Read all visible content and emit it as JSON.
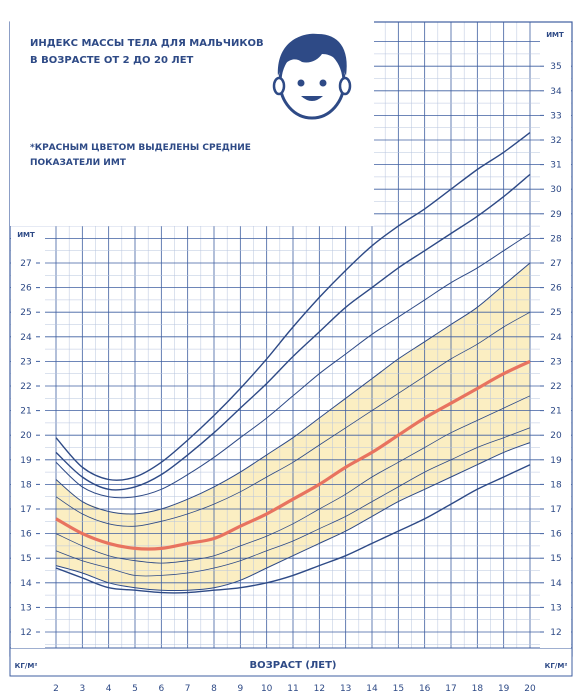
{
  "header": {
    "title_line1": "ИНДЕКС МАССЫ ТЕЛА ДЛЯ МАЛЬЧИКОВ",
    "title_line2": "В ВОЗРАСТЕ ОТ 2 ДО 20 ЛЕТ",
    "note_line1": "*КРАСНЫМ ЦВЕТОМ ВЫДЕЛЕНЫ СРЕДНИЕ",
    "note_line2": "ПОКАЗАТЕЛИ ИМТ"
  },
  "colors": {
    "grid": "#3f5fa0",
    "grid_light": "#b7c4de",
    "curve": "#2e4a86",
    "median": "#e8735f",
    "band_fill": "#fbeec2",
    "text": "#2e4a86"
  },
  "icons": {
    "boy": "boy-face-icon"
  },
  "chart_data": {
    "type": "line",
    "title": "ИНДЕКС МАССЫ ТЕЛА ДЛЯ МАЛЬЧИКОВ В ВОЗРАСТЕ ОТ 2 ДО 20 ЛЕТ",
    "xlabel": "ВОЗРАСТ (ЛЕТ)",
    "ylabel_left_top": "ИМТ",
    "ylabel_right_top": "ИМТ",
    "unit_left": "КГ/М²",
    "unit_right": "КГ/М²",
    "xlim": [
      2,
      20
    ],
    "ylim": [
      11,
      36
    ],
    "x_ticks": [
      2,
      3,
      4,
      5,
      6,
      7,
      8,
      9,
      10,
      11,
      12,
      13,
      14,
      15,
      16,
      17,
      18,
      19,
      20
    ],
    "y_ticks_left": [
      12,
      13,
      14,
      15,
      16,
      17,
      18,
      19,
      20,
      21,
      22,
      23,
      24,
      25,
      26,
      27
    ],
    "y_ticks_right": [
      12,
      13,
      14,
      15,
      16,
      17,
      18,
      19,
      20,
      21,
      22,
      23,
      24,
      25,
      26,
      27,
      28,
      29,
      30,
      31,
      32,
      33,
      34,
      35
    ],
    "grid": true,
    "legend": "none",
    "highlight_band": [
      "p5",
      "p85"
    ],
    "x": [
      2,
      3,
      4,
      5,
      6,
      7,
      8,
      9,
      10,
      11,
      12,
      13,
      14,
      15,
      16,
      17,
      18,
      19,
      20
    ],
    "series": [
      {
        "id": "p97",
        "values": [
          19.9,
          18.7,
          18.2,
          18.3,
          18.9,
          19.8,
          20.8,
          21.9,
          23.1,
          24.4,
          25.6,
          26.7,
          27.7,
          28.5,
          29.2,
          30.0,
          30.8,
          31.5,
          32.3
        ]
      },
      {
        "id": "p95",
        "values": [
          19.3,
          18.3,
          17.8,
          17.9,
          18.4,
          19.2,
          20.1,
          21.1,
          22.1,
          23.2,
          24.2,
          25.2,
          26.0,
          26.8,
          27.5,
          28.2,
          28.9,
          29.7,
          30.6
        ]
      },
      {
        "id": "p90",
        "values": [
          18.9,
          17.9,
          17.5,
          17.5,
          17.8,
          18.4,
          19.1,
          19.9,
          20.7,
          21.6,
          22.5,
          23.3,
          24.1,
          24.8,
          25.5,
          26.2,
          26.8,
          27.5,
          28.2
        ]
      },
      {
        "id": "p85",
        "values": [
          18.2,
          17.3,
          16.9,
          16.8,
          17.0,
          17.4,
          17.9,
          18.5,
          19.2,
          19.9,
          20.7,
          21.5,
          22.3,
          23.1,
          23.8,
          24.5,
          25.2,
          26.1,
          27.0
        ]
      },
      {
        "id": "p75",
        "values": [
          17.5,
          16.8,
          16.4,
          16.3,
          16.5,
          16.8,
          17.2,
          17.7,
          18.3,
          18.9,
          19.6,
          20.3,
          21.0,
          21.7,
          22.4,
          23.1,
          23.7,
          24.4,
          25.0
        ]
      },
      {
        "id": "p50",
        "values": [
          16.6,
          16.0,
          15.6,
          15.4,
          15.4,
          15.6,
          15.8,
          16.3,
          16.8,
          17.4,
          18.0,
          18.7,
          19.3,
          20.0,
          20.7,
          21.3,
          21.9,
          22.5,
          23.0
        ]
      },
      {
        "id": "p25",
        "values": [
          16.0,
          15.5,
          15.1,
          14.9,
          14.8,
          14.9,
          15.1,
          15.5,
          15.9,
          16.4,
          17.0,
          17.6,
          18.3,
          18.9,
          19.5,
          20.1,
          20.6,
          21.1,
          21.6
        ]
      },
      {
        "id": "p10",
        "values": [
          15.3,
          14.9,
          14.6,
          14.3,
          14.3,
          14.4,
          14.6,
          14.9,
          15.3,
          15.7,
          16.2,
          16.7,
          17.3,
          17.9,
          18.5,
          19.0,
          19.5,
          19.9,
          20.3
        ]
      },
      {
        "id": "p5",
        "values": [
          14.7,
          14.4,
          14.0,
          13.8,
          13.7,
          13.7,
          13.8,
          14.1,
          14.6,
          15.1,
          15.6,
          16.1,
          16.7,
          17.3,
          17.8,
          18.3,
          18.8,
          19.3,
          19.7
        ]
      },
      {
        "id": "p3",
        "values": [
          14.6,
          14.2,
          13.8,
          13.7,
          13.6,
          13.6,
          13.7,
          13.8,
          14.0,
          14.3,
          14.7,
          15.1,
          15.6,
          16.1,
          16.6,
          17.2,
          17.8,
          18.3,
          18.8
        ]
      }
    ]
  }
}
